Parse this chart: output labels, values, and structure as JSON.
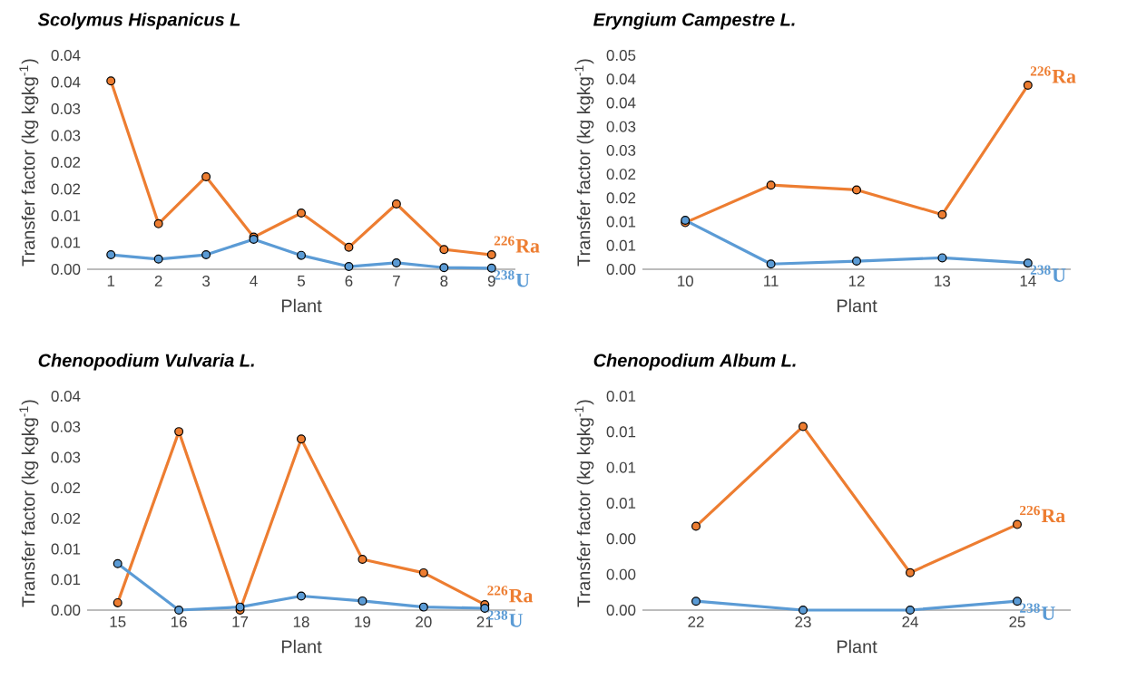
{
  "chart_data": [
    {
      "type": "line",
      "title": "Scolymus Hispanicus L",
      "xlabel": "Plant",
      "ylabel": "Transfer factor (kg kgkg$^{-1}$)",
      "categories": [
        "1",
        "2",
        "3",
        "4",
        "5",
        "6",
        "7",
        "8",
        "9"
      ],
      "marker": "circle",
      "legend": false,
      "grid": false,
      "series": [
        {
          "name": "$^{226}$Ra",
          "color": "#ed7d31",
          "values": [
            0.0352,
            0.0085,
            0.0173,
            0.006,
            0.0105,
            0.0041,
            0.0122,
            0.0037,
            0.0027
          ]
        },
        {
          "name": "$^{238}$U",
          "color": "#5b9bd5",
          "values": [
            0.0027,
            0.0019,
            0.0027,
            0.0056,
            0.0026,
            0.0005,
            0.0012,
            0.0003,
            0.0002
          ]
        }
      ],
      "ylim": [
        0,
        0.04
      ],
      "yticks": [
        {
          "value": 0,
          "label": "0.00"
        },
        {
          "value": 0.005,
          "label": "0.01"
        },
        {
          "value": 0.01,
          "label": "0.01"
        },
        {
          "value": 0.015,
          "label": "0.02"
        },
        {
          "value": 0.02,
          "label": "0.02"
        },
        {
          "value": 0.025,
          "label": "0.03"
        },
        {
          "value": 0.03,
          "label": "0.03"
        },
        {
          "value": 0.035,
          "label": "0.04"
        },
        {
          "value": 0.04,
          "label": "0.04"
        }
      ]
    },
    {
      "type": "line",
      "title": "Eryngium Campestre L.",
      "xlabel": "Plant",
      "ylabel": "Transfer factor (kg kgkg$^{-1}$)",
      "categories": [
        "10",
        "11",
        "12",
        "13",
        "14"
      ],
      "marker": "circle",
      "legend": false,
      "grid": false,
      "series": [
        {
          "name": "$^{226}$Ra",
          "color": "#ed7d31",
          "values": [
            0.0098,
            0.0177,
            0.0167,
            0.0115,
            0.0387
          ]
        },
        {
          "name": "$^{238}$U",
          "color": "#5b9bd5",
          "values": [
            0.0103,
            0.0011,
            0.0017,
            0.0024,
            0.0013
          ]
        }
      ],
      "ylim": [
        0,
        0.045
      ],
      "yticks": [
        {
          "value": 0,
          "label": "0.00"
        },
        {
          "value": 0.005,
          "label": "0.01"
        },
        {
          "value": 0.01,
          "label": "0.01"
        },
        {
          "value": 0.015,
          "label": "0.02"
        },
        {
          "value": 0.02,
          "label": "0.02"
        },
        {
          "value": 0.025,
          "label": "0.03"
        },
        {
          "value": 0.03,
          "label": "0.03"
        },
        {
          "value": 0.035,
          "label": "0.04"
        },
        {
          "value": 0.04,
          "label": "0.04"
        },
        {
          "value": 0.045,
          "label": "0.05"
        }
      ]
    },
    {
      "type": "line",
      "title": "Chenopodium Vulvaria L.",
      "xlabel": "Plant",
      "ylabel": "Transfer factor (kg kgkg$^{-1}$)",
      "categories": [
        "15",
        "16",
        "17",
        "18",
        "19",
        "20",
        "21"
      ],
      "marker": "circle",
      "legend": false,
      "grid": false,
      "series": [
        {
          "name": "$^{226}$Ra",
          "color": "#ed7d31",
          "values": [
            0.0012,
            0.0292,
            0.0,
            0.028,
            0.0083,
            0.0061,
            0.0009
          ]
        },
        {
          "name": "$^{238}$U",
          "color": "#5b9bd5",
          "values": [
            0.0076,
            0.0,
            0.0005,
            0.0023,
            0.0015,
            0.0005,
            0.0003
          ]
        }
      ],
      "ylim": [
        0,
        0.035
      ],
      "yticks": [
        {
          "value": 0,
          "label": "0.00"
        },
        {
          "value": 0.005,
          "label": "0.01"
        },
        {
          "value": 0.01,
          "label": "0.01"
        },
        {
          "value": 0.015,
          "label": "0.02"
        },
        {
          "value": 0.02,
          "label": "0.02"
        },
        {
          "value": 0.025,
          "label": "0.03"
        },
        {
          "value": 0.03,
          "label": "0.03"
        },
        {
          "value": 0.035,
          "label": "0.04"
        }
      ]
    },
    {
      "type": "line",
      "title": "Chenopodium Album L.",
      "xlabel": "Plant",
      "ylabel": "Transfer factor (kg kgkg$^{-1}$)",
      "categories": [
        "22",
        "23",
        "24",
        "25"
      ],
      "marker": "circle",
      "legend": false,
      "grid": false,
      "series": [
        {
          "name": "$^{226}$Ra",
          "color": "#ed7d31",
          "values": [
            0.0047,
            0.0103,
            0.0021,
            0.0048
          ]
        },
        {
          "name": "$^{238}$U",
          "color": "#5b9bd5",
          "values": [
            0.0005,
            0.0,
            0.0,
            0.0005
          ]
        }
      ],
      "ylim": [
        0,
        0.012
      ],
      "yticks": [
        {
          "value": 0,
          "label": "0.00"
        },
        {
          "value": 0.002,
          "label": "0.00"
        },
        {
          "value": 0.004,
          "label": "0.00"
        },
        {
          "value": 0.006,
          "label": "0.01"
        },
        {
          "value": 0.008,
          "label": "0.01"
        },
        {
          "value": 0.01,
          "label": "0.01"
        },
        {
          "value": 0.012,
          "label": "0.01"
        }
      ]
    }
  ]
}
